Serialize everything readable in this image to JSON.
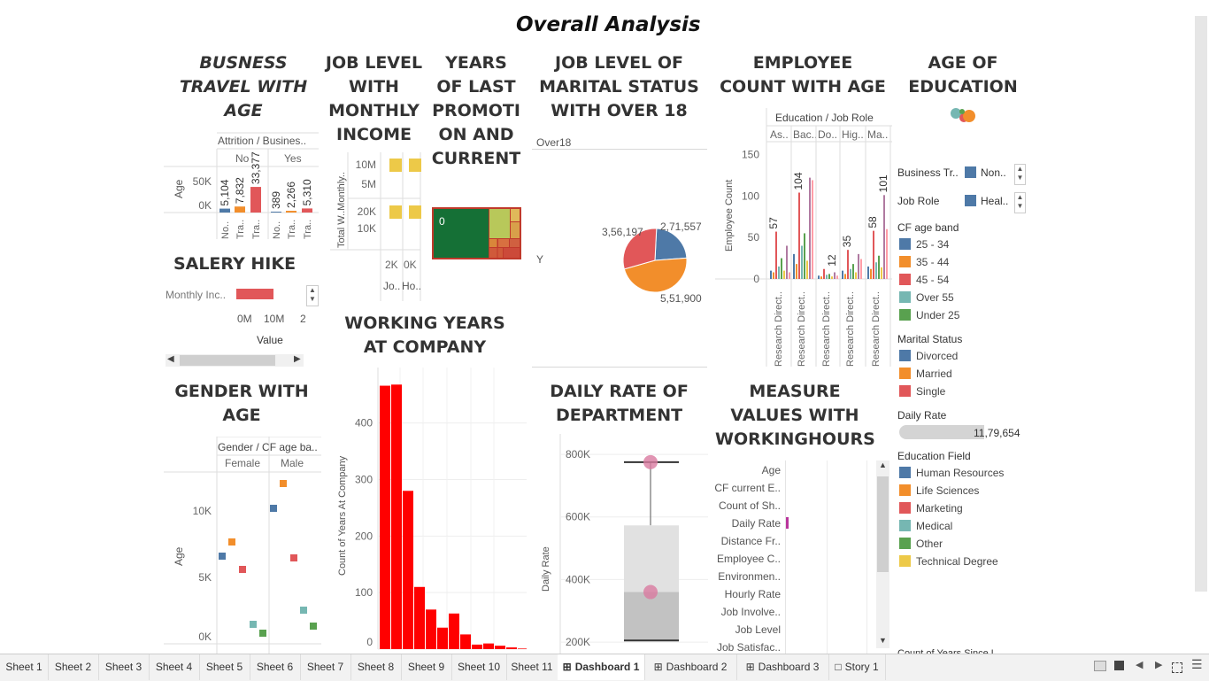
{
  "dashboard_title": "Overall Analysis",
  "sections": {
    "business_travel": "BUSNESS TRAVEL WITH AGE",
    "job_level_income": "JOB LEVEL WITH MONTHLY INCOME",
    "years_promotion": "YEARS OF LAST PROMOTI ON AND CURRENT",
    "marital_status": "JOB LEVEL OF MARITAL STATUS WITH OVER 18",
    "employee_count": "EMPLOYEE COUNT WITH AGE",
    "age_education": "AGE OF EDUCATION",
    "salery_hike": "SALERY HIKE",
    "working_years": "WORKING YEARS AT COMPANY",
    "gender_age": "GENDER WITH AGE",
    "daily_rate": "DAILY RATE OF DEPARTMENT",
    "measure_values": "MEASURE VALUES WITH WORKINGHOURS"
  },
  "chart_data": [
    {
      "type": "bar",
      "title": "BUSNESS TRAVEL WITH AGE",
      "header": "Attrition / Busines..",
      "groups": [
        "No",
        "Yes"
      ],
      "categories": [
        "No..",
        "Tra..",
        "Tra..",
        "No..",
        "Tra..",
        "Tra.."
      ],
      "values": [
        5104,
        7832,
        33377,
        389,
        2266,
        5310
      ],
      "value_labels": [
        "5,104",
        "7,832",
        "33,377",
        "389",
        "2,266",
        "5,310"
      ],
      "ylabel": "Age",
      "yticks": [
        "50K",
        "0K"
      ],
      "ylim": [
        0,
        60000
      ],
      "colors": [
        "#4e79a7",
        "#f28e2b",
        "#e15759",
        "#4e79a7",
        "#f28e2b",
        "#e15759"
      ]
    },
    {
      "type": "scatter",
      "title": "JOB LEVEL WITH MONTHLY INCOME",
      "ylabel": "Total W..Monthly..",
      "yticks_top": [
        "10M",
        "5M"
      ],
      "yticks_bottom": [
        "20K",
        "10K"
      ],
      "xticks": [
        "2K",
        "0K"
      ],
      "xlabels": [
        "Jo..",
        "Ho.."
      ],
      "color": "#edc948"
    },
    {
      "type": "heatmap",
      "title": "YEARS OF LAST PROMOTI ON AND CURRENT",
      "label": "0"
    },
    {
      "type": "pie",
      "title": "JOB LEVEL OF MARITAL STATUS WITH OVER 18",
      "header": "Over18",
      "row_label": "Y",
      "slices": [
        {
          "label": "2,71,557",
          "value": 271557,
          "color": "#4e79a7"
        },
        {
          "label": "5,51,900",
          "value": 551900,
          "color": "#f28e2b"
        },
        {
          "label": "3,56,197",
          "value": 356197,
          "color": "#e15759"
        }
      ]
    },
    {
      "type": "bar",
      "title": "EMPLOYEE COUNT WITH AGE",
      "header": "Education / Job Role",
      "groups": [
        "As..",
        "Bac..",
        "Do..",
        "Hig..",
        "Ma.."
      ],
      "xlabels": [
        "Research Direct..",
        "Research Direct..",
        "Research Direct..",
        "Research Direct..",
        "Research Direct.."
      ],
      "ylabel": "Employee Count",
      "yticks": [
        150,
        100,
        50,
        0
      ],
      "ylim": [
        0,
        160
      ],
      "peak_labels": [
        "57",
        "104",
        "12",
        "35",
        "58",
        "101"
      ]
    },
    {
      "type": "bar",
      "title": "SALERY HIKE",
      "row_label": "Monthly Inc..",
      "xticks": [
        "0M",
        "10M",
        "2"
      ],
      "xlabel": "Value",
      "color": "#e15759"
    },
    {
      "type": "bar",
      "title": "WORKING YEARS AT COMPANY",
      "ylabel": "Count of Years At Company",
      "yticks": [
        400,
        300,
        200,
        100,
        0
      ],
      "ylim": [
        0,
        470
      ],
      "values": [
        466,
        468,
        280,
        110,
        70,
        38,
        63,
        26,
        8,
        10,
        6,
        3,
        1
      ],
      "color": "#ff0000"
    },
    {
      "type": "scatter",
      "title": "GENDER WITH AGE",
      "header": "Gender / CF age ba..",
      "groups": [
        "Female",
        "Male"
      ],
      "ylabel": "Age",
      "yticks": [
        "10K",
        "5K",
        "0K"
      ],
      "ylim": [
        0,
        12500
      ]
    },
    {
      "type": "box",
      "title": "DAILY RATE OF DEPARTMENT",
      "ylabel": "Daily Rate",
      "yticks": [
        "800K",
        "600K",
        "400K",
        "200K"
      ],
      "ylim": [
        180000,
        830000
      ],
      "whisker_max": 775000,
      "q3": 573000,
      "median": 360000,
      "q1": 205000,
      "points": [
        775000,
        360000
      ]
    },
    {
      "type": "bar",
      "title": "MEASURE VALUES WITH WORKINGHOURS",
      "categories": [
        "Age",
        "CF current E..",
        "Count of Sh..",
        "Daily Rate",
        "Distance Fr..",
        "Employee C..",
        "Environmen..",
        "Hourly Rate",
        "Job Involve..",
        "Job Level",
        "Job Satisfac.."
      ],
      "highlight": "Daily Rate",
      "color": "#b9359c"
    }
  ],
  "legend": {
    "filters": [
      {
        "label": "Business Tr..",
        "value": "Non..",
        "color": "#4e79a7"
      },
      {
        "label": "Job Role",
        "value": "Heal..",
        "color": "#4e79a7"
      }
    ],
    "cf_age_band": {
      "title": "CF age band",
      "items": [
        {
          "label": "25 - 34",
          "color": "#4e79a7"
        },
        {
          "label": "35 - 44",
          "color": "#f28e2b"
        },
        {
          "label": "45 - 54",
          "color": "#e15759"
        },
        {
          "label": "Over 55",
          "color": "#76b7b2"
        },
        {
          "label": "Under 25",
          "color": "#59a14f"
        }
      ]
    },
    "marital_status": {
      "title": "Marital Status",
      "items": [
        {
          "label": "Divorced",
          "color": "#4e79a7"
        },
        {
          "label": "Married",
          "color": "#f28e2b"
        },
        {
          "label": "Single",
          "color": "#e15759"
        }
      ]
    },
    "daily_rate": {
      "title": "Daily Rate",
      "value": "11,79,654"
    },
    "education_field": {
      "title": "Education Field",
      "items": [
        {
          "label": "Human Resources",
          "color": "#4e79a7"
        },
        {
          "label": "Life Sciences",
          "color": "#f28e2b"
        },
        {
          "label": "Marketing",
          "color": "#e15759"
        },
        {
          "label": "Medical",
          "color": "#76b7b2"
        },
        {
          "label": "Other",
          "color": "#59a14f"
        },
        {
          "label": "Technical Degree",
          "color": "#edc948"
        }
      ]
    },
    "cutoff": "Count of Years Since L.."
  },
  "tabs": [
    {
      "label": "Sheet 1"
    },
    {
      "label": "Sheet 2"
    },
    {
      "label": "Sheet 3"
    },
    {
      "label": "Sheet 4"
    },
    {
      "label": "Sheet 5"
    },
    {
      "label": "Sheet 6"
    },
    {
      "label": "Sheet 7"
    },
    {
      "label": "Sheet 8"
    },
    {
      "label": "Sheet 9"
    },
    {
      "label": "Sheet 10"
    },
    {
      "label": "Sheet 11"
    },
    {
      "label": "Dashboard 1",
      "icon": "dashboard-icon",
      "active": true
    },
    {
      "label": "Dashboard 2",
      "icon": "dashboard-icon"
    },
    {
      "label": "Dashboard 3",
      "icon": "dashboard-icon"
    },
    {
      "label": "Story 1",
      "icon": "story-icon"
    }
  ]
}
